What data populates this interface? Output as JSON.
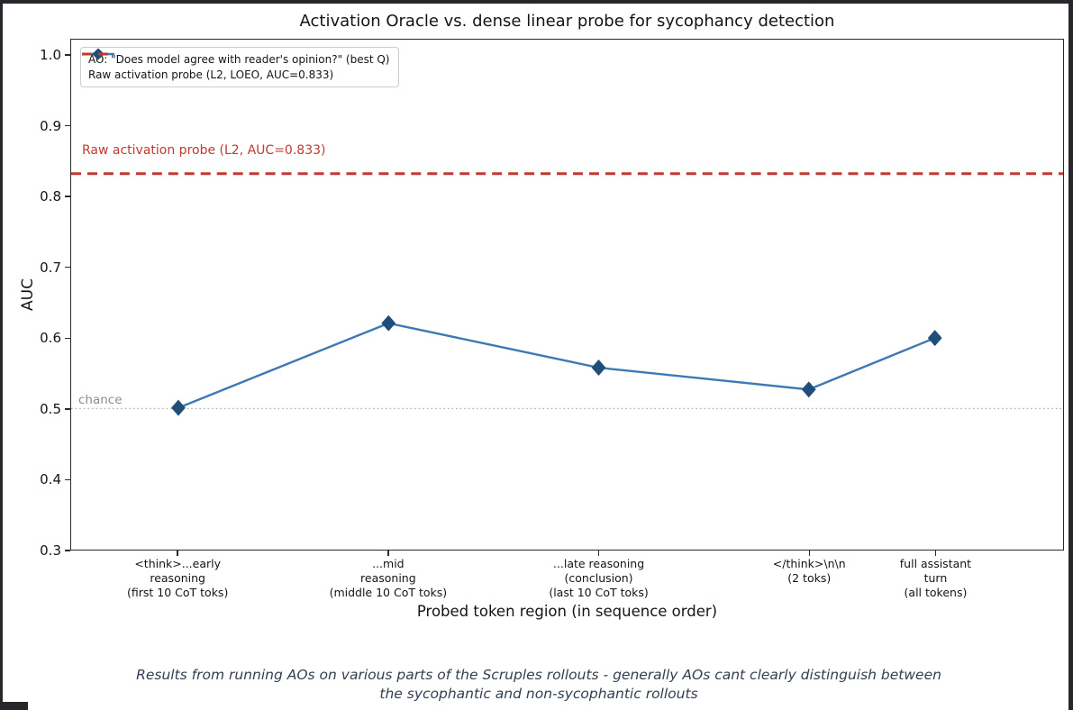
{
  "chart_data": {
    "type": "line",
    "title": "Activation Oracle vs. dense linear probe for sycophancy detection",
    "xlabel": "Probed token region (in sequence order)",
    "ylabel": "AUC",
    "ylim": [
      0.3,
      1.023
    ],
    "xlim": [
      -0.51,
      4.21
    ],
    "yticks": [
      1.0,
      0.9,
      0.8,
      0.7,
      0.6,
      0.5,
      0.4,
      0.3
    ],
    "x": [
      0,
      1,
      2,
      3,
      3.6
    ],
    "categories": [
      [
        "<think>...early",
        "reasoning",
        "(first 10 CoT toks)"
      ],
      [
        "...mid",
        "reasoning",
        "(middle 10 CoT toks)"
      ],
      [
        "...late reasoning",
        "(conclusion)",
        "(last 10 CoT toks)"
      ],
      [
        "</think>\\n\\n",
        "(2 toks)"
      ],
      [
        "full assistant",
        "turn",
        "(all tokens)"
      ]
    ],
    "series": [
      {
        "name": "AO: \"Does model agree with reader's opinion?\" (best Q)",
        "values": [
          0.501,
          0.621,
          0.558,
          0.527,
          0.6
        ],
        "line_color": "#3d7ab5",
        "marker_color": "#1f4e79",
        "marker": "diamond"
      }
    ],
    "reference_lines": [
      {
        "label": "Raw activation probe (L2, AUC=0.833)",
        "value": 0.833,
        "style": "dashed",
        "color": "#bf3a32",
        "label_color": "#bf3a32"
      },
      {
        "label": "chance",
        "value": 0.5,
        "style": "dotted",
        "color": "#b3b3b3",
        "label_color": "#8c8c8c"
      }
    ],
    "legend": {
      "position": "upper left",
      "entries": [
        {
          "swatch": "line-diamond",
          "label": "AO: \"Does model agree with reader's opinion?\" (best Q)"
        },
        {
          "swatch": "dashed-red",
          "label": "Raw activation probe (L2, LOEO, AUC=0.833)"
        }
      ]
    },
    "grid": false,
    "caption": "Results from running AOs on various parts of the Scruples rollouts - generally AOs cant clearly distinguish between the sycophantic and non-sycophantic rollouts"
  }
}
